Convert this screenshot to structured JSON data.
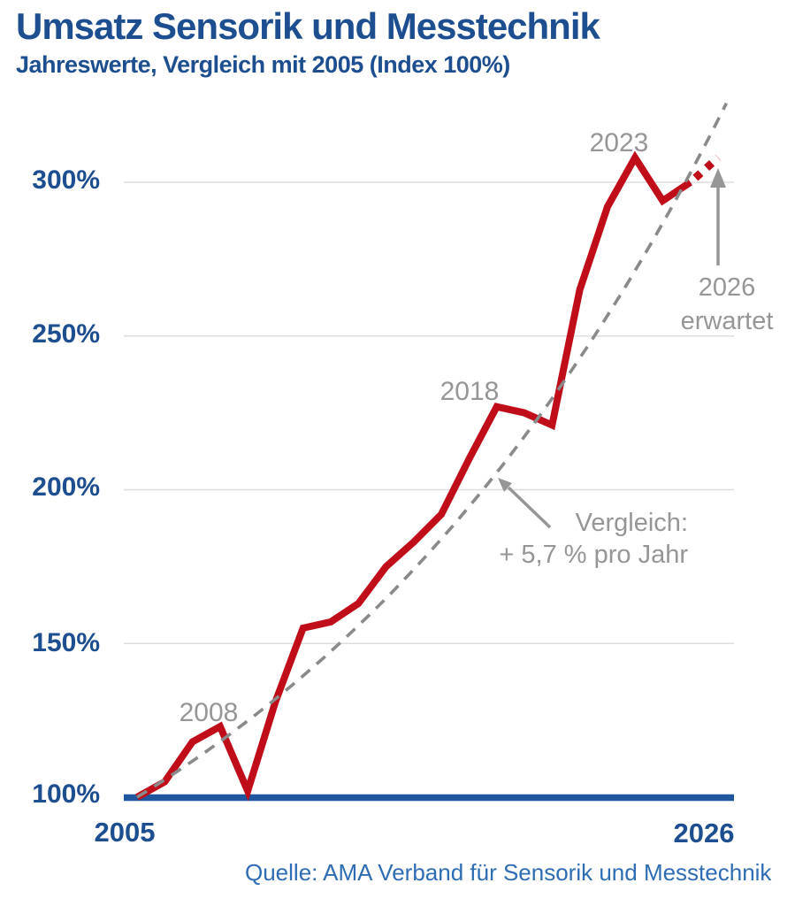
{
  "header": {
    "title": "Umsatz Sensorik und Messtechnik",
    "subtitle": "Jahreswerte, Vergleich mit 2005 (Index 100%)"
  },
  "source": {
    "text": "Quelle: AMA Verband für Sensorik und Messtechnik"
  },
  "colors": {
    "brand_blue": "#1d4e8f",
    "baseline_blue": "#1e579e",
    "source_blue": "#2e6db4",
    "line_red": "#c00d1a",
    "annotation_gray": "#969696",
    "dash_gray": "#8a8a8a",
    "gridline_gray": "#dedede"
  },
  "chart_data": {
    "type": "line",
    "title": "Umsatz Sensorik und Messtechnik",
    "subtitle": "Jahreswerte, Vergleich mit 2005 (Index 100%)",
    "unit": "percent index, 2005 = 100%",
    "x": [
      2005,
      2006,
      2007,
      2008,
      2009,
      2010,
      2011,
      2012,
      2013,
      2014,
      2015,
      2016,
      2017,
      2018,
      2019,
      2020,
      2021,
      2022,
      2023,
      2024,
      2025,
      2026
    ],
    "series": [
      {
        "name": "Umsatz Sensorik und Messtechnik (Index)",
        "color": "#c00d1a",
        "style": "solid",
        "solid_through_year": 2025,
        "forecast_dotted_years": [
          2025,
          2026
        ],
        "values": [
          100,
          105,
          118,
          123,
          102,
          131,
          155,
          157,
          163,
          175,
          183,
          192,
          210,
          227,
          225,
          221,
          265,
          292,
          308,
          294,
          300,
          308
        ]
      },
      {
        "name": "Vergleich: + 5,7 % pro Jahr",
        "color": "#8a8a8a",
        "style": "dashed",
        "start_value": 100,
        "growth_pct_per_year": 5.7
      }
    ],
    "ylim": [
      100,
      327
    ],
    "xlim": [
      2005,
      2026
    ],
    "grid": "horizontal",
    "legend_position": "none",
    "yticks": [
      {
        "value": 300,
        "label": "300%"
      },
      {
        "value": 250,
        "label": "250%"
      },
      {
        "value": 200,
        "label": "200%"
      },
      {
        "value": 150,
        "label": "150%"
      },
      {
        "value": 100,
        "label": "100%"
      }
    ],
    "xticks": [
      {
        "value": 2005,
        "label": "2005"
      },
      {
        "value": 2026,
        "label": "2026"
      }
    ],
    "annotations": {
      "peak_2008": "2008",
      "peak_2018": "2018",
      "peak_2023": "2023",
      "expected_line1": "2026",
      "expected_line2": "erwartet",
      "trend_line1": "Vergleich:",
      "trend_line2": "+ 5,7 % pro Jahr"
    }
  }
}
